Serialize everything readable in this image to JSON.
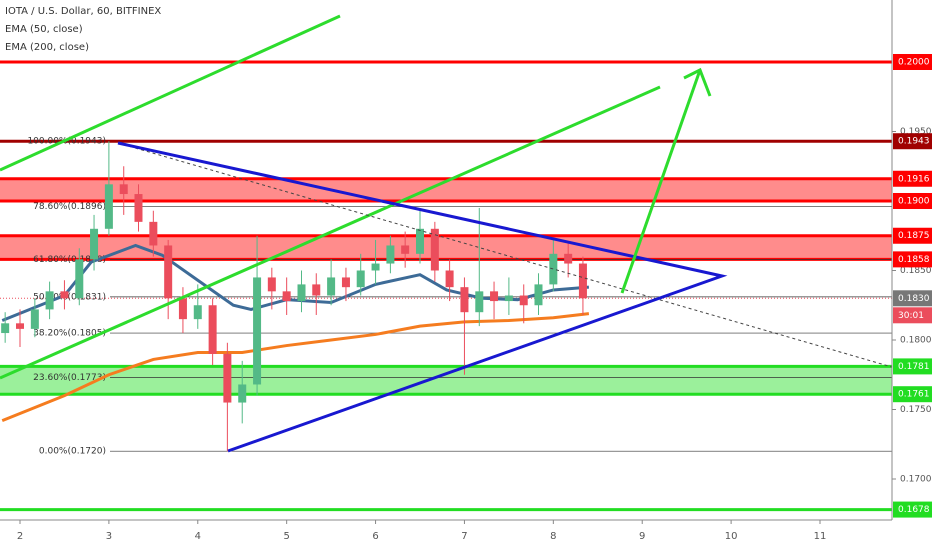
{
  "chart_data": {
    "type": "candlestick",
    "title": "IOTA / U.S. Dollar, 60, BITFINEX",
    "xlim": [
      1.775,
      11.81
    ],
    "xticks": [
      2,
      3,
      4,
      5,
      6,
      7,
      8,
      9,
      10,
      11
    ],
    "ylim": [
      0.16705,
      0.20446
    ],
    "yticks": [
      {
        "value": 0.195,
        "label": "0.1950"
      },
      {
        "value": 0.185,
        "label": "0.1850"
      },
      {
        "value": 0.18,
        "label": "0.1800"
      },
      {
        "value": 0.175,
        "label": "0.1750"
      },
      {
        "value": 0.17,
        "label": "0.1700"
      }
    ],
    "up_color": "#53b987",
    "down_color": "#eb4d5c",
    "candles": {
      "x": [
        1.833,
        2.0,
        2.167,
        2.333,
        2.5,
        2.667,
        2.833,
        3.0,
        3.167,
        3.333,
        3.5,
        3.667,
        3.833,
        4.0,
        4.167,
        4.333,
        4.5,
        4.667,
        4.833,
        5.0,
        5.167,
        5.333,
        5.5,
        5.667,
        5.833,
        6.0,
        6.167,
        6.333,
        6.5,
        6.667,
        6.833,
        7.0,
        7.167,
        7.333,
        7.5,
        7.667,
        7.833,
        8.0,
        8.167,
        8.333
      ],
      "open": [
        0.1805,
        0.1812,
        0.1808,
        0.1822,
        0.1835,
        0.183,
        0.1858,
        0.188,
        0.1912,
        0.1905,
        0.1885,
        0.1868,
        0.183,
        0.1815,
        0.1825,
        0.179,
        0.1755,
        0.1768,
        0.1845,
        0.1835,
        0.1828,
        0.184,
        0.1832,
        0.1845,
        0.1838,
        0.185,
        0.1855,
        0.1868,
        0.1862,
        0.188,
        0.185,
        0.1838,
        0.182,
        0.1835,
        0.1828,
        0.1832,
        0.1825,
        0.184,
        0.1862,
        0.1855
      ],
      "high": [
        0.182,
        0.1822,
        0.183,
        0.1842,
        0.1843,
        0.1866,
        0.189,
        0.1943,
        0.1925,
        0.1912,
        0.1893,
        0.1872,
        0.1838,
        0.184,
        0.183,
        0.1798,
        0.1785,
        0.1875,
        0.1852,
        0.1845,
        0.185,
        0.1848,
        0.1858,
        0.1852,
        0.1862,
        0.1872,
        0.1875,
        0.1878,
        0.1893,
        0.1885,
        0.1858,
        0.1845,
        0.1895,
        0.1842,
        0.1845,
        0.184,
        0.1848,
        0.1872,
        0.187,
        0.186
      ],
      "low": [
        0.1798,
        0.1795,
        0.1802,
        0.1815,
        0.1822,
        0.1825,
        0.185,
        0.1875,
        0.189,
        0.1878,
        0.186,
        0.1815,
        0.1805,
        0.1808,
        0.1782,
        0.172,
        0.174,
        0.176,
        0.1822,
        0.1818,
        0.182,
        0.1818,
        0.1825,
        0.1828,
        0.1832,
        0.184,
        0.1848,
        0.1852,
        0.1855,
        0.1842,
        0.1828,
        0.1775,
        0.181,
        0.1815,
        0.1818,
        0.1812,
        0.1818,
        0.1835,
        0.1845,
        0.1818
      ],
      "close": [
        0.1812,
        0.1808,
        0.1822,
        0.1835,
        0.183,
        0.1858,
        0.188,
        0.1912,
        0.1905,
        0.1885,
        0.1868,
        0.183,
        0.1815,
        0.1825,
        0.179,
        0.1755,
        0.1768,
        0.1845,
        0.1835,
        0.1828,
        0.184,
        0.1832,
        0.1845,
        0.1838,
        0.185,
        0.1855,
        0.1868,
        0.1862,
        0.188,
        0.185,
        0.1838,
        0.182,
        0.1835,
        0.1828,
        0.1832,
        0.1825,
        0.184,
        0.1862,
        0.1855,
        0.183
      ]
    },
    "series": [
      {
        "name": "EMA (50, close)",
        "color": "#3d6b97",
        "x": [
          1.8,
          2.5,
          2.8,
          3.3,
          3.6,
          4.0,
          4.4,
          4.6,
          5.0,
          5.5,
          6.0,
          6.5,
          6.8,
          7.2,
          7.6,
          8.0,
          8.4
        ],
        "values": [
          0.1814,
          0.1832,
          0.1856,
          0.1868,
          0.1861,
          0.1843,
          0.1825,
          0.1822,
          0.1829,
          0.1827,
          0.184,
          0.1847,
          0.1836,
          0.183,
          0.1829,
          0.1836,
          0.1838
        ]
      },
      {
        "name": "EMA (200, close)",
        "color": "#f57c1f",
        "x": [
          1.8,
          2.5,
          3.0,
          3.5,
          4.0,
          4.5,
          5.0,
          5.5,
          6.0,
          6.5,
          7.0,
          7.5,
          8.0,
          8.4
        ],
        "values": [
          0.1742,
          0.176,
          0.1775,
          0.1786,
          0.1791,
          0.1791,
          0.1796,
          0.18,
          0.1804,
          0.181,
          0.1813,
          0.1814,
          0.1816,
          0.1819
        ]
      }
    ],
    "fib_levels": [
      {
        "value": 0.1943,
        "label": "100.00%(0.1943)"
      },
      {
        "value": 0.1896,
        "label": "78.60%(0.1896)"
      },
      {
        "value": 0.1858,
        "label": "61.80%(0.1858)"
      },
      {
        "value": 0.1831,
        "label": "50.00%(0.1831)"
      },
      {
        "value": 0.1805,
        "label": "38.20%(0.1805)"
      },
      {
        "value": 0.1773,
        "label": "23.60%(0.1773)"
      },
      {
        "value": 0.172,
        "label": "0.00%(0.1720)"
      }
    ],
    "lines": [
      {
        "value": 0.2,
        "label": "0.2000",
        "color": "#ff0000"
      },
      {
        "value": 0.1943,
        "label": "0.1943",
        "color": "#a00000"
      },
      {
        "value": 0.1678,
        "label": "0.1678",
        "color": "#22dd22"
      }
    ],
    "bands": [
      {
        "low": {
          "value": 0.19,
          "label": "0.1900"
        },
        "high": {
          "value": 0.1916,
          "label": "0.1916"
        },
        "color": "#ff0000"
      },
      {
        "low": {
          "value": 0.1858,
          "label": "0.1858"
        },
        "high": {
          "value": 0.1875,
          "label": "0.1875"
        },
        "color": "#ff0000"
      },
      {
        "low": {
          "value": 0.1761,
          "label": "0.1761"
        },
        "high": {
          "value": 0.1781,
          "label": "0.1781"
        },
        "color": "#22dd22"
      }
    ],
    "last_price": {
      "value": 0.183,
      "label": "0.1830"
    },
    "countdown": "30:01"
  }
}
